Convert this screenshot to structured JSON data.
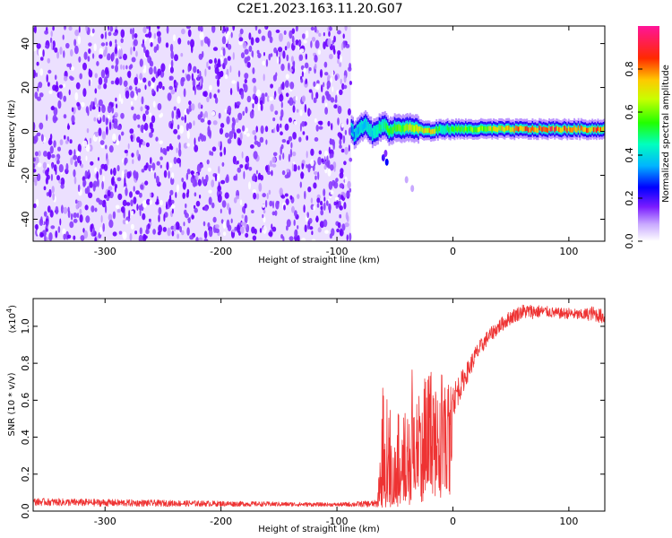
{
  "title": "C2E1.2023.163.11.20.G07",
  "chart_data": [
    {
      "type": "heatmap",
      "title": "",
      "xlabel": "Height of straight line (km)",
      "ylabel": "Frequency (Hz)",
      "xlim": [
        -362,
        131
      ],
      "ylim": [
        -50,
        48
      ],
      "xticks": [
        -300,
        -200,
        -100,
        0,
        100
      ],
      "yticks": [
        -40,
        -20,
        0,
        20,
        40
      ],
      "tick_labels_x": [
        "-300",
        "-200",
        "-100",
        "0",
        "100"
      ],
      "tick_labels_y": [
        "-40",
        "-20",
        "0",
        "20",
        "40"
      ],
      "noise_region": {
        "x": [
          -362,
          -88
        ],
        "y": [
          -50,
          48
        ],
        "level": 0.15
      },
      "signal_band": {
        "x": [
          -88,
          131
        ],
        "center_freq": [
          [
            -88,
            1
          ],
          [
            -85,
            -2
          ],
          [
            -80,
            2
          ],
          [
            -75,
            3
          ],
          [
            -70,
            -1
          ],
          [
            -65,
            1
          ],
          [
            -60,
            3
          ],
          [
            -55,
            0
          ],
          [
            -50,
            2
          ],
          [
            -45,
            1
          ],
          [
            -40,
            2
          ],
          [
            -30,
            1
          ],
          [
            -20,
            0
          ],
          [
            -10,
            1
          ],
          [
            0,
            1
          ],
          [
            20,
            1
          ],
          [
            40,
            1
          ],
          [
            60,
            1
          ],
          [
            80,
            1
          ],
          [
            100,
            1
          ],
          [
            131,
            1
          ]
        ],
        "peak_amplitude": [
          [
            -88,
            0.35
          ],
          [
            -70,
            0.45
          ],
          [
            -50,
            0.6
          ],
          [
            -30,
            0.7
          ],
          [
            -20,
            0.8
          ],
          [
            -10,
            0.5
          ],
          [
            0,
            0.55
          ],
          [
            40,
            0.75
          ],
          [
            60,
            0.85
          ],
          [
            80,
            0.9
          ],
          [
            100,
            0.85
          ],
          [
            131,
            0.85
          ]
        ]
      },
      "colorbar": {
        "label": "Normalized spectral amplitude",
        "range": [
          0.0,
          1.0
        ],
        "ticks": [
          0.0,
          0.2,
          0.4,
          0.6,
          0.8
        ],
        "tick_labels": [
          "0.0",
          "0.2",
          "0.4",
          "0.6",
          "0.8"
        ]
      },
      "grid": false
    },
    {
      "type": "line",
      "title": "",
      "xlabel": "Height of straight line (km)",
      "ylabel": "SNR (10 * v/v)",
      "y_multiplier": "(x10",
      "y_multiplier_exp": "4",
      "y_multiplier_close": ")",
      "xlim": [
        -362,
        131
      ],
      "ylim": [
        0,
        1.15
      ],
      "xticks": [
        -300,
        -200,
        -100,
        0,
        100
      ],
      "yticks": [
        0.0,
        0.2,
        0.4,
        0.6,
        0.8,
        1.0
      ],
      "tick_labels_x": [
        "-300",
        "-200",
        "-100",
        "0",
        "100"
      ],
      "tick_labels_y": [
        "0.0",
        "0.2",
        "0.4",
        "0.6",
        "0.8",
        "1.0"
      ],
      "series_color": "#ee3333",
      "envelope": {
        "x": [
          -362,
          -300,
          -200,
          -100,
          -65,
          -60,
          -55,
          -50,
          -45,
          -40,
          -35,
          -30,
          -25,
          -20,
          -15,
          -10,
          -5,
          0,
          10,
          20,
          30,
          40,
          50,
          60,
          70,
          80,
          90,
          100,
          110,
          120,
          131
        ],
        "base": [
          0.05,
          0.045,
          0.04,
          0.035,
          0.04,
          0.15,
          0.1,
          0.12,
          0.16,
          0.2,
          0.25,
          0.3,
          0.3,
          0.35,
          0.4,
          0.42,
          0.48,
          0.6,
          0.72,
          0.85,
          0.94,
          1.0,
          1.05,
          1.08,
          1.08,
          1.08,
          1.07,
          1.07,
          1.06,
          1.07,
          1.05
        ],
        "spike": [
          0.02,
          0.02,
          0.015,
          0.01,
          0.02,
          0.6,
          0.5,
          0.3,
          0.5,
          0.45,
          0.55,
          0.35,
          0.45,
          0.45,
          0.35,
          0.35,
          0.2,
          0.1,
          0.06,
          0.05,
          0.04,
          0.04,
          0.04,
          0.04,
          0.04,
          0.03,
          0.03,
          0.03,
          0.03,
          0.04,
          0.04
        ]
      },
      "grid": false
    }
  ]
}
